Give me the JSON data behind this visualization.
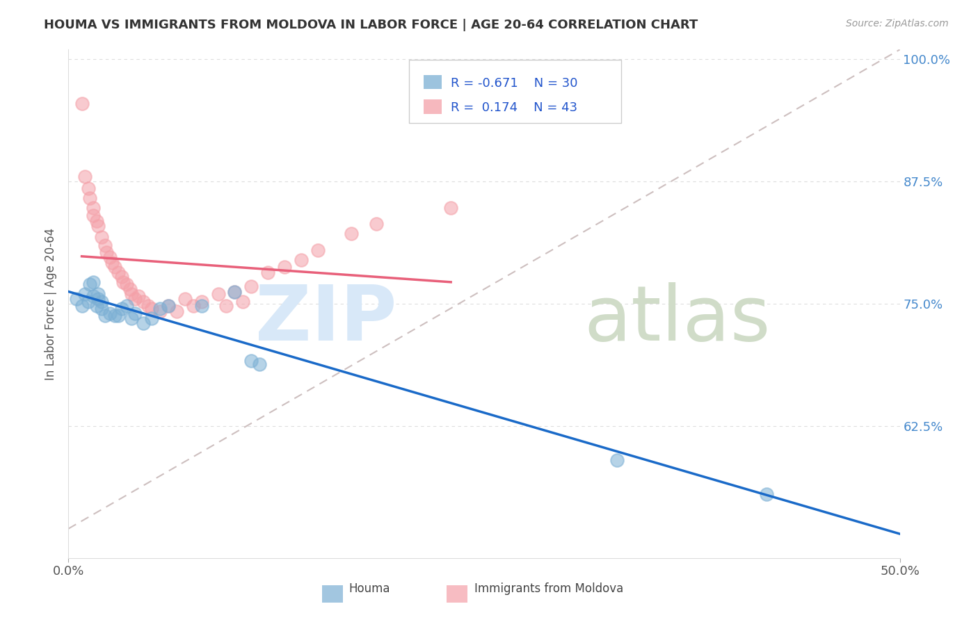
{
  "title": "HOUMA VS IMMIGRANTS FROM MOLDOVA IN LABOR FORCE | AGE 20-64 CORRELATION CHART",
  "source": "Source: ZipAtlas.com",
  "ylabel": "In Labor Force | Age 20-64",
  "houma_R": -0.671,
  "houma_N": 30,
  "moldova_R": 0.174,
  "moldova_N": 43,
  "houma_color": "#7BAFD4",
  "moldova_color": "#F4A0A8",
  "houma_line_color": "#1A6AC8",
  "moldova_line_color": "#E8607A",
  "ref_line_color": "#C8B8B8",
  "background_color": "#FFFFFF",
  "grid_color": "#DDDDDD",
  "ytick_color": "#4488CC",
  "title_color": "#333333",
  "source_color": "#999999",
  "xlim_min": 0.0,
  "xlim_max": 0.5,
  "ylim_min": 0.49,
  "ylim_max": 1.01,
  "yticks": [
    0.625,
    0.75,
    0.875,
    1.0
  ],
  "yticklabels": [
    "62.5%",
    "75.0%",
    "87.5%",
    "100.0%"
  ],
  "houma_points_x": [
    0.005,
    0.008,
    0.01,
    0.012,
    0.013,
    0.015,
    0.015,
    0.017,
    0.018,
    0.018,
    0.02,
    0.02,
    0.022,
    0.025,
    0.028,
    0.03,
    0.032,
    0.035,
    0.038,
    0.04,
    0.045,
    0.05,
    0.055,
    0.06,
    0.08,
    0.1,
    0.11,
    0.115,
    0.33,
    0.42
  ],
  "houma_points_y": [
    0.755,
    0.748,
    0.76,
    0.752,
    0.77,
    0.758,
    0.772,
    0.748,
    0.76,
    0.755,
    0.745,
    0.752,
    0.738,
    0.74,
    0.738,
    0.738,
    0.745,
    0.748,
    0.735,
    0.74,
    0.73,
    0.735,
    0.745,
    0.748,
    0.748,
    0.762,
    0.692,
    0.688,
    0.59,
    0.555
  ],
  "moldova_points_x": [
    0.008,
    0.01,
    0.012,
    0.013,
    0.015,
    0.015,
    0.017,
    0.018,
    0.02,
    0.022,
    0.023,
    0.025,
    0.026,
    0.028,
    0.03,
    0.032,
    0.033,
    0.035,
    0.037,
    0.038,
    0.04,
    0.042,
    0.045,
    0.048,
    0.05,
    0.055,
    0.06,
    0.065,
    0.07,
    0.075,
    0.08,
    0.09,
    0.095,
    0.1,
    0.105,
    0.11,
    0.12,
    0.13,
    0.14,
    0.15,
    0.17,
    0.185,
    0.23
  ],
  "moldova_points_y": [
    0.955,
    0.88,
    0.868,
    0.858,
    0.848,
    0.84,
    0.835,
    0.83,
    0.818,
    0.81,
    0.803,
    0.798,
    0.792,
    0.788,
    0.782,
    0.778,
    0.772,
    0.77,
    0.765,
    0.76,
    0.755,
    0.758,
    0.752,
    0.748,
    0.745,
    0.742,
    0.748,
    0.742,
    0.755,
    0.748,
    0.752,
    0.76,
    0.748,
    0.762,
    0.752,
    0.768,
    0.782,
    0.788,
    0.795,
    0.805,
    0.822,
    0.832,
    0.848
  ],
  "watermark_zip_color": "#D8E8F8",
  "watermark_atlas_color": "#D0DCC8",
  "legend_R_color": "-0.671",
  "legend_N_houma": 30,
  "legend_N_moldova": 43
}
